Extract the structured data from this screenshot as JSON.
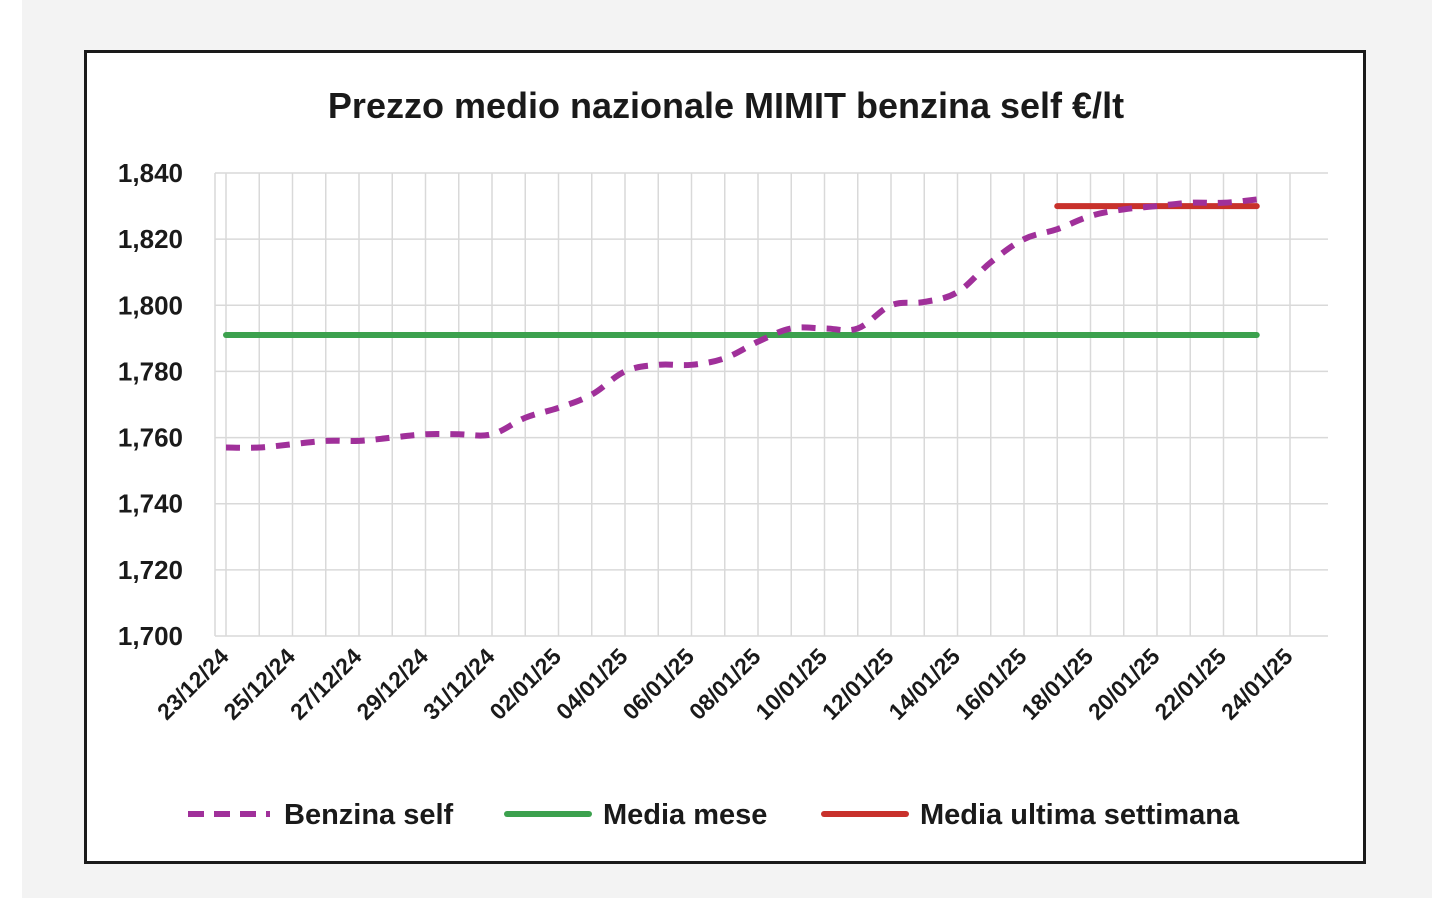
{
  "chart_data": {
    "type": "line",
    "title": "Prezzo medio nazionale MIMIT benzina self €/lt",
    "ylim": [
      1.7,
      1.84
    ],
    "yticks": [
      "1,700",
      "1,720",
      "1,740",
      "1,760",
      "1,780",
      "1,800",
      "1,820",
      "1,840"
    ],
    "ytick_values": [
      1.7,
      1.72,
      1.74,
      1.76,
      1.78,
      1.8,
      1.82,
      1.84
    ],
    "x_start": "2024-12-23",
    "x_end": "2025-01-24",
    "xticks": [
      "23/12/24",
      "25/12/24",
      "27/12/24",
      "29/12/24",
      "31/12/24",
      "02/01/25",
      "04/01/25",
      "06/01/25",
      "08/01/25",
      "10/01/25",
      "12/01/25",
      "14/01/25",
      "16/01/25",
      "18/01/25",
      "20/01/25",
      "22/01/25",
      "24/01/25"
    ],
    "xtick_dates": [
      "2024-12-23",
      "2024-12-25",
      "2024-12-27",
      "2024-12-29",
      "2024-12-31",
      "2025-01-02",
      "2025-01-04",
      "2025-01-06",
      "2025-01-08",
      "2025-01-10",
      "2025-01-12",
      "2025-01-14",
      "2025-01-16",
      "2025-01-18",
      "2025-01-20",
      "2025-01-22",
      "2025-01-24"
    ],
    "grid": true,
    "legend_position": "bottom",
    "series": [
      {
        "name": "Benzina self",
        "color": "#a0309a",
        "style": "dashed",
        "x": [
          "2024-12-23",
          "2024-12-24",
          "2024-12-25",
          "2024-12-26",
          "2024-12-27",
          "2024-12-28",
          "2024-12-29",
          "2024-12-30",
          "2024-12-31",
          "2025-01-01",
          "2025-01-02",
          "2025-01-03",
          "2025-01-04",
          "2025-01-05",
          "2025-01-06",
          "2025-01-07",
          "2025-01-08",
          "2025-01-09",
          "2025-01-10",
          "2025-01-11",
          "2025-01-12",
          "2025-01-13",
          "2025-01-14",
          "2025-01-15",
          "2025-01-16",
          "2025-01-17",
          "2025-01-18",
          "2025-01-19",
          "2025-01-20",
          "2025-01-21",
          "2025-01-22",
          "2025-01-23"
        ],
        "values": [
          1.757,
          1.757,
          1.758,
          1.759,
          1.759,
          1.76,
          1.761,
          1.761,
          1.761,
          1.766,
          1.769,
          1.773,
          1.78,
          1.782,
          1.782,
          1.784,
          1.789,
          1.793,
          1.793,
          1.793,
          1.8,
          1.801,
          1.804,
          1.813,
          1.82,
          1.823,
          1.827,
          1.829,
          1.83,
          1.831,
          1.831,
          1.832
        ]
      },
      {
        "name": "Media mese",
        "color": "#3ca14e",
        "style": "solid",
        "x": [
          "2024-12-23",
          "2025-01-23"
        ],
        "values": [
          1.791,
          1.791
        ]
      },
      {
        "name": "Media ultima settimana",
        "color": "#c8312b",
        "style": "solid",
        "x": [
          "2025-01-17",
          "2025-01-23"
        ],
        "values": [
          1.83,
          1.83
        ]
      }
    ]
  }
}
